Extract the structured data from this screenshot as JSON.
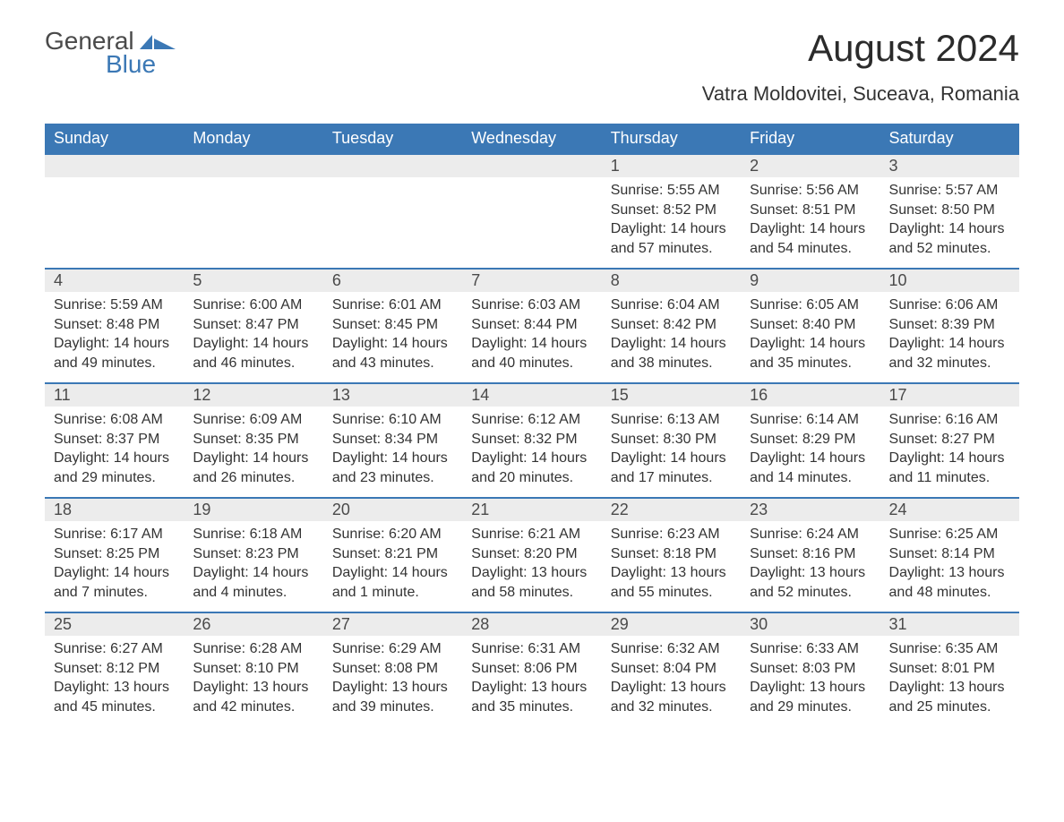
{
  "logo": {
    "word1": "General",
    "word2": "Blue"
  },
  "title": "August 2024",
  "location": "Vatra Moldovitei, Suceava, Romania",
  "colors": {
    "header_bg": "#3b78b5",
    "header_text": "#ffffff",
    "daynum_bg": "#ececec",
    "text": "#333333",
    "logo_gray": "#4a4a4a",
    "logo_blue": "#3b78b5",
    "background": "#ffffff"
  },
  "weekdays": [
    "Sunday",
    "Monday",
    "Tuesday",
    "Wednesday",
    "Thursday",
    "Friday",
    "Saturday"
  ],
  "weeks": [
    [
      null,
      null,
      null,
      null,
      {
        "n": "1",
        "sunrise": "Sunrise: 5:55 AM",
        "sunset": "Sunset: 8:52 PM",
        "day1": "Daylight: 14 hours",
        "day2": "and 57 minutes."
      },
      {
        "n": "2",
        "sunrise": "Sunrise: 5:56 AM",
        "sunset": "Sunset: 8:51 PM",
        "day1": "Daylight: 14 hours",
        "day2": "and 54 minutes."
      },
      {
        "n": "3",
        "sunrise": "Sunrise: 5:57 AM",
        "sunset": "Sunset: 8:50 PM",
        "day1": "Daylight: 14 hours",
        "day2": "and 52 minutes."
      }
    ],
    [
      {
        "n": "4",
        "sunrise": "Sunrise: 5:59 AM",
        "sunset": "Sunset: 8:48 PM",
        "day1": "Daylight: 14 hours",
        "day2": "and 49 minutes."
      },
      {
        "n": "5",
        "sunrise": "Sunrise: 6:00 AM",
        "sunset": "Sunset: 8:47 PM",
        "day1": "Daylight: 14 hours",
        "day2": "and 46 minutes."
      },
      {
        "n": "6",
        "sunrise": "Sunrise: 6:01 AM",
        "sunset": "Sunset: 8:45 PM",
        "day1": "Daylight: 14 hours",
        "day2": "and 43 minutes."
      },
      {
        "n": "7",
        "sunrise": "Sunrise: 6:03 AM",
        "sunset": "Sunset: 8:44 PM",
        "day1": "Daylight: 14 hours",
        "day2": "and 40 minutes."
      },
      {
        "n": "8",
        "sunrise": "Sunrise: 6:04 AM",
        "sunset": "Sunset: 8:42 PM",
        "day1": "Daylight: 14 hours",
        "day2": "and 38 minutes."
      },
      {
        "n": "9",
        "sunrise": "Sunrise: 6:05 AM",
        "sunset": "Sunset: 8:40 PM",
        "day1": "Daylight: 14 hours",
        "day2": "and 35 minutes."
      },
      {
        "n": "10",
        "sunrise": "Sunrise: 6:06 AM",
        "sunset": "Sunset: 8:39 PM",
        "day1": "Daylight: 14 hours",
        "day2": "and 32 minutes."
      }
    ],
    [
      {
        "n": "11",
        "sunrise": "Sunrise: 6:08 AM",
        "sunset": "Sunset: 8:37 PM",
        "day1": "Daylight: 14 hours",
        "day2": "and 29 minutes."
      },
      {
        "n": "12",
        "sunrise": "Sunrise: 6:09 AM",
        "sunset": "Sunset: 8:35 PM",
        "day1": "Daylight: 14 hours",
        "day2": "and 26 minutes."
      },
      {
        "n": "13",
        "sunrise": "Sunrise: 6:10 AM",
        "sunset": "Sunset: 8:34 PM",
        "day1": "Daylight: 14 hours",
        "day2": "and 23 minutes."
      },
      {
        "n": "14",
        "sunrise": "Sunrise: 6:12 AM",
        "sunset": "Sunset: 8:32 PM",
        "day1": "Daylight: 14 hours",
        "day2": "and 20 minutes."
      },
      {
        "n": "15",
        "sunrise": "Sunrise: 6:13 AM",
        "sunset": "Sunset: 8:30 PM",
        "day1": "Daylight: 14 hours",
        "day2": "and 17 minutes."
      },
      {
        "n": "16",
        "sunrise": "Sunrise: 6:14 AM",
        "sunset": "Sunset: 8:29 PM",
        "day1": "Daylight: 14 hours",
        "day2": "and 14 minutes."
      },
      {
        "n": "17",
        "sunrise": "Sunrise: 6:16 AM",
        "sunset": "Sunset: 8:27 PM",
        "day1": "Daylight: 14 hours",
        "day2": "and 11 minutes."
      }
    ],
    [
      {
        "n": "18",
        "sunrise": "Sunrise: 6:17 AM",
        "sunset": "Sunset: 8:25 PM",
        "day1": "Daylight: 14 hours",
        "day2": "and 7 minutes."
      },
      {
        "n": "19",
        "sunrise": "Sunrise: 6:18 AM",
        "sunset": "Sunset: 8:23 PM",
        "day1": "Daylight: 14 hours",
        "day2": "and 4 minutes."
      },
      {
        "n": "20",
        "sunrise": "Sunrise: 6:20 AM",
        "sunset": "Sunset: 8:21 PM",
        "day1": "Daylight: 14 hours",
        "day2": "and 1 minute."
      },
      {
        "n": "21",
        "sunrise": "Sunrise: 6:21 AM",
        "sunset": "Sunset: 8:20 PM",
        "day1": "Daylight: 13 hours",
        "day2": "and 58 minutes."
      },
      {
        "n": "22",
        "sunrise": "Sunrise: 6:23 AM",
        "sunset": "Sunset: 8:18 PM",
        "day1": "Daylight: 13 hours",
        "day2": "and 55 minutes."
      },
      {
        "n": "23",
        "sunrise": "Sunrise: 6:24 AM",
        "sunset": "Sunset: 8:16 PM",
        "day1": "Daylight: 13 hours",
        "day2": "and 52 minutes."
      },
      {
        "n": "24",
        "sunrise": "Sunrise: 6:25 AM",
        "sunset": "Sunset: 8:14 PM",
        "day1": "Daylight: 13 hours",
        "day2": "and 48 minutes."
      }
    ],
    [
      {
        "n": "25",
        "sunrise": "Sunrise: 6:27 AM",
        "sunset": "Sunset: 8:12 PM",
        "day1": "Daylight: 13 hours",
        "day2": "and 45 minutes."
      },
      {
        "n": "26",
        "sunrise": "Sunrise: 6:28 AM",
        "sunset": "Sunset: 8:10 PM",
        "day1": "Daylight: 13 hours",
        "day2": "and 42 minutes."
      },
      {
        "n": "27",
        "sunrise": "Sunrise: 6:29 AM",
        "sunset": "Sunset: 8:08 PM",
        "day1": "Daylight: 13 hours",
        "day2": "and 39 minutes."
      },
      {
        "n": "28",
        "sunrise": "Sunrise: 6:31 AM",
        "sunset": "Sunset: 8:06 PM",
        "day1": "Daylight: 13 hours",
        "day2": "and 35 minutes."
      },
      {
        "n": "29",
        "sunrise": "Sunrise: 6:32 AM",
        "sunset": "Sunset: 8:04 PM",
        "day1": "Daylight: 13 hours",
        "day2": "and 32 minutes."
      },
      {
        "n": "30",
        "sunrise": "Sunrise: 6:33 AM",
        "sunset": "Sunset: 8:03 PM",
        "day1": "Daylight: 13 hours",
        "day2": "and 29 minutes."
      },
      {
        "n": "31",
        "sunrise": "Sunrise: 6:35 AM",
        "sunset": "Sunset: 8:01 PM",
        "day1": "Daylight: 13 hours",
        "day2": "and 25 minutes."
      }
    ]
  ]
}
